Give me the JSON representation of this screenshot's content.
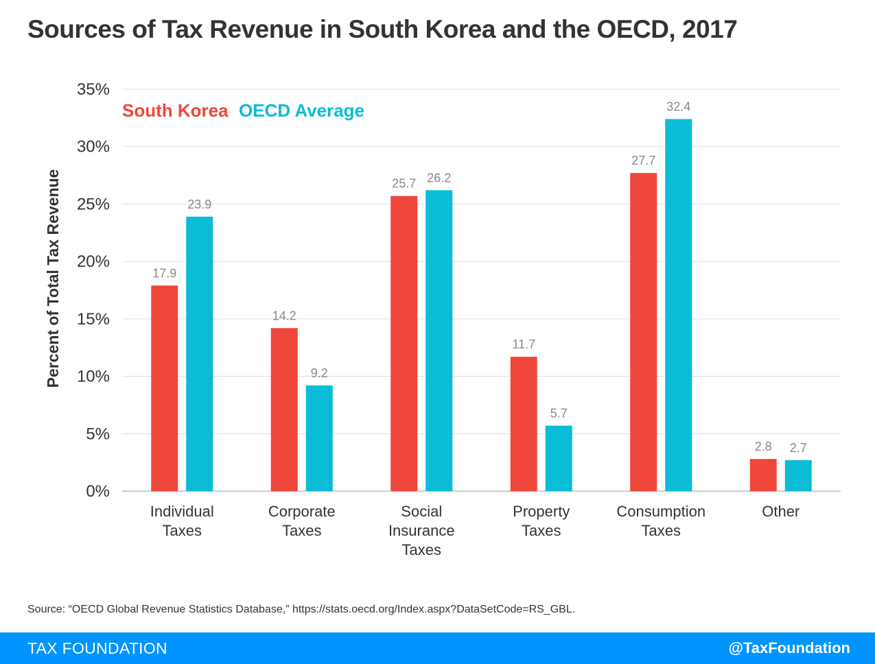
{
  "title": "Sources of Tax Revenue in South Korea and the OECD, 2017",
  "source": "Source: “OECD Global Revenue Statistics Database,” https://stats.oecd.org/Index.aspx?DataSetCode=RS_GBL.",
  "footer": {
    "brand": "TAX FOUNDATION",
    "handle": "@TaxFoundation"
  },
  "colors": {
    "south_korea": "#ef463b",
    "oecd": "#0bbcd6",
    "grid": "#dddddd",
    "label": "#888888",
    "text": "#333333",
    "footer": "#0094ff"
  },
  "chart_data": {
    "type": "bar",
    "categories": [
      [
        "Individual",
        "Taxes"
      ],
      [
        "Corporate",
        "Taxes"
      ],
      [
        "Social",
        "Insurance",
        "Taxes"
      ],
      [
        "Property",
        "Taxes"
      ],
      [
        "Consumption",
        "Taxes"
      ],
      [
        "Other"
      ]
    ],
    "series": [
      {
        "name": "South Korea",
        "values": [
          17.9,
          14.2,
          25.7,
          11.7,
          27.7,
          2.8
        ]
      },
      {
        "name": "OECD Average",
        "values": [
          23.9,
          9.2,
          26.2,
          5.7,
          32.4,
          2.7
        ]
      }
    ],
    "ylabel": "Percent of Total Tax Revenue",
    "ylim": [
      0,
      35
    ],
    "yticks": [
      0,
      5,
      10,
      15,
      20,
      25,
      30,
      35
    ],
    "ytick_suffix": "%",
    "legend_placement": "top-left",
    "grid": true
  }
}
